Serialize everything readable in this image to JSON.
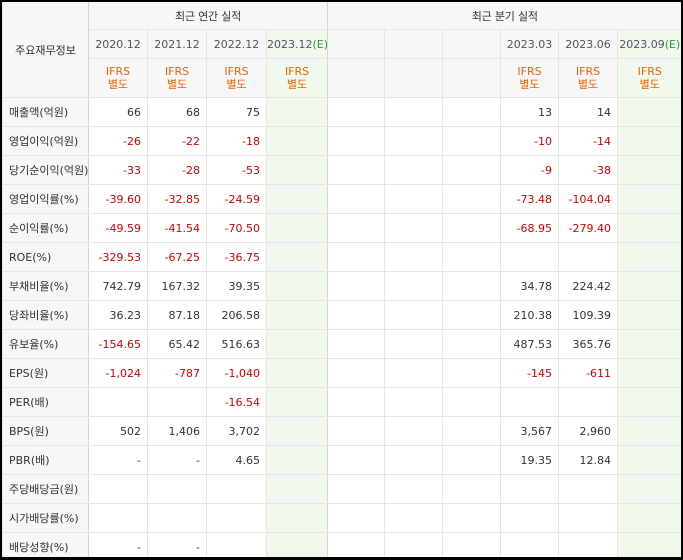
{
  "header": {
    "corner_label": "주요재무정보",
    "annual_group": "최근 연간 실적",
    "quarter_group": "최근 분기 실적",
    "annual_periods": [
      "2020.12",
      "2021.12",
      "2022.12",
      "2023.12(E)"
    ],
    "quarter_periods": [
      "",
      "",
      "",
      "2023.03",
      "2023.06",
      "2023.09(E)"
    ],
    "ifrs_top": "IFRS",
    "ifrs_bottom": "별도"
  },
  "rows": [
    {
      "label": "매출액(억원)",
      "annual": [
        "66",
        "68",
        "75",
        ""
      ],
      "quarter": [
        "",
        "",
        "",
        "13",
        "14",
        ""
      ]
    },
    {
      "label": "영업이익(억원)",
      "annual": [
        "-26",
        "-22",
        "-18",
        ""
      ],
      "quarter": [
        "",
        "",
        "",
        "-10",
        "-14",
        ""
      ]
    },
    {
      "label": "당기순이익(억원)",
      "annual": [
        "-33",
        "-28",
        "-53",
        ""
      ],
      "quarter": [
        "",
        "",
        "",
        "-9",
        "-38",
        ""
      ]
    },
    {
      "label": "영업이익률(%)",
      "annual": [
        "-39.60",
        "-32.85",
        "-24.59",
        ""
      ],
      "quarter": [
        "",
        "",
        "",
        "-73.48",
        "-104.04",
        ""
      ]
    },
    {
      "label": "순이익률(%)",
      "annual": [
        "-49.59",
        "-41.54",
        "-70.50",
        ""
      ],
      "quarter": [
        "",
        "",
        "",
        "-68.95",
        "-279.40",
        ""
      ]
    },
    {
      "label": "ROE(%)",
      "annual": [
        "-329.53",
        "-67.25",
        "-36.75",
        ""
      ],
      "quarter": [
        "",
        "",
        "",
        "",
        "",
        ""
      ]
    },
    {
      "label": "부채비율(%)",
      "annual": [
        "742.79",
        "167.32",
        "39.35",
        ""
      ],
      "quarter": [
        "",
        "",
        "",
        "34.78",
        "224.42",
        ""
      ]
    },
    {
      "label": "당좌비율(%)",
      "annual": [
        "36.23",
        "87.18",
        "206.58",
        ""
      ],
      "quarter": [
        "",
        "",
        "",
        "210.38",
        "109.39",
        ""
      ]
    },
    {
      "label": "유보율(%)",
      "annual": [
        "-154.65",
        "65.42",
        "516.63",
        ""
      ],
      "quarter": [
        "",
        "",
        "",
        "487.53",
        "365.76",
        ""
      ]
    },
    {
      "label": "EPS(원)",
      "annual": [
        "-1,024",
        "-787",
        "-1,040",
        ""
      ],
      "quarter": [
        "",
        "",
        "",
        "-145",
        "-611",
        ""
      ]
    },
    {
      "label": "PER(배)",
      "annual": [
        "",
        "",
        "-16.54",
        ""
      ],
      "quarter": [
        "",
        "",
        "",
        "",
        "",
        ""
      ]
    },
    {
      "label": "BPS(원)",
      "annual": [
        "502",
        "1,406",
        "3,702",
        ""
      ],
      "quarter": [
        "",
        "",
        "",
        "3,567",
        "2,960",
        ""
      ]
    },
    {
      "label": "PBR(배)",
      "annual": [
        "-",
        "-",
        "4.65",
        ""
      ],
      "quarter": [
        "",
        "",
        "",
        "19.35",
        "12.84",
        ""
      ]
    },
    {
      "label": "주당배당금(원)",
      "annual": [
        "",
        "",
        "",
        ""
      ],
      "quarter": [
        "",
        "",
        "",
        "",
        "",
        ""
      ]
    },
    {
      "label": "시가배당률(%)",
      "annual": [
        "",
        "",
        "",
        ""
      ],
      "quarter": [
        "",
        "",
        "",
        "",
        "",
        ""
      ]
    },
    {
      "label": "배당성향(%)",
      "annual": [
        "-",
        "-",
        "",
        ""
      ],
      "quarter": [
        "",
        "",
        "",
        "",
        "",
        ""
      ]
    }
  ],
  "colors": {
    "negative": "#d10000",
    "ifrs": "#f06100",
    "estimate_bg": "#f1f8ee",
    "estimate_text": "#2c9b3c"
  }
}
